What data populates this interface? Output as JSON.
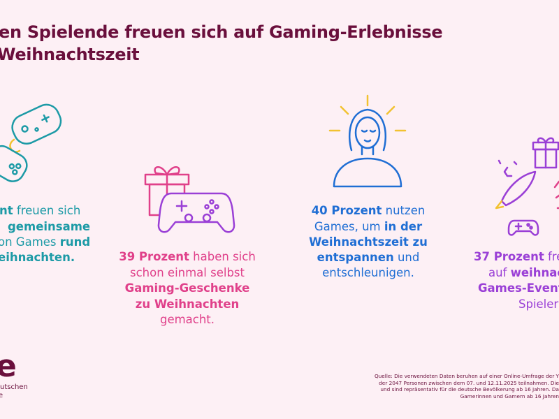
{
  "title": {
    "line1": "en Spielende freuen sich auf Gaming-Erlebnisse",
    "line2": "Weihnachtszeit"
  },
  "colors": {
    "title": "#6a0f3c",
    "teal": "#1c9aa6",
    "pink": "#e0408a",
    "blue": "#1f6ed4",
    "purple": "#9a3fd6",
    "background": "#fdf0f5"
  },
  "stats": [
    {
      "icon": "two-controllers-icon",
      "lines": [
        [
          {
            "t": "nt",
            "b": true
          },
          {
            "t": " freuen sich",
            "b": false
          }
        ],
        [
          {
            "t": "gemeinsame",
            "b": true
          }
        ],
        [
          {
            "t": "on Games ",
            "b": false
          },
          {
            "t": "rund",
            "b": true
          }
        ],
        [
          {
            "t": "eihnachten.",
            "b": true
          }
        ]
      ]
    },
    {
      "icon": "gift-and-controller-icon",
      "lines": [
        [
          {
            "t": "39 Prozent",
            "b": true
          },
          {
            "t": " haben sich",
            "b": false
          }
        ],
        [
          {
            "t": "schon einmal selbst",
            "b": false
          }
        ],
        [
          {
            "t": "Gaming-Geschenke",
            "b": true
          }
        ],
        [
          {
            "t": "zu Weihnachten",
            "b": true
          }
        ],
        [
          {
            "t": "gemacht.",
            "b": false
          }
        ]
      ]
    },
    {
      "icon": "relaxed-woman-icon",
      "lines": [
        [
          {
            "t": "40 Prozent",
            "b": true
          },
          {
            "t": " nutzen",
            "b": false
          }
        ],
        [
          {
            "t": "Games, um ",
            "b": false
          },
          {
            "t": "in der",
            "b": true
          }
        ],
        [
          {
            "t": "Weihnachtszeit zu",
            "b": true
          }
        ],
        [
          {
            "t": "entspannen",
            "b": true
          },
          {
            "t": " und",
            "b": false
          }
        ],
        [
          {
            "t": "entschleunigen.",
            "b": false
          }
        ]
      ]
    },
    {
      "icon": "rocket-gift-controller-icon",
      "lines": [
        [
          {
            "t": "37 Prozent",
            "b": true
          },
          {
            "t": " fre",
            "b": false
          }
        ],
        [
          {
            "t": "auf ",
            "b": false
          },
          {
            "t": "weihnac",
            "b": true
          }
        ],
        [
          {
            "t": "Games-Event",
            "b": true
          }
        ],
        [
          {
            "t": "Spieler",
            "b": false
          }
        ]
      ]
    }
  ],
  "logo": {
    "mark": "e",
    "line1": "utschen",
    "line2": "e"
  },
  "source": [
    "Quelle: Die verwendeten Daten beruhen auf einer Online-Umfrage der Y",
    "der 2047 Personen zwischen dem 07. und 12.11.2025 teilnahmen. Die",
    "und sind repräsentativ für die deutsche Bevölkerung ab 16 Jahren. Da",
    "Gamerinnen und Gamern ab 16 Jahren"
  ]
}
